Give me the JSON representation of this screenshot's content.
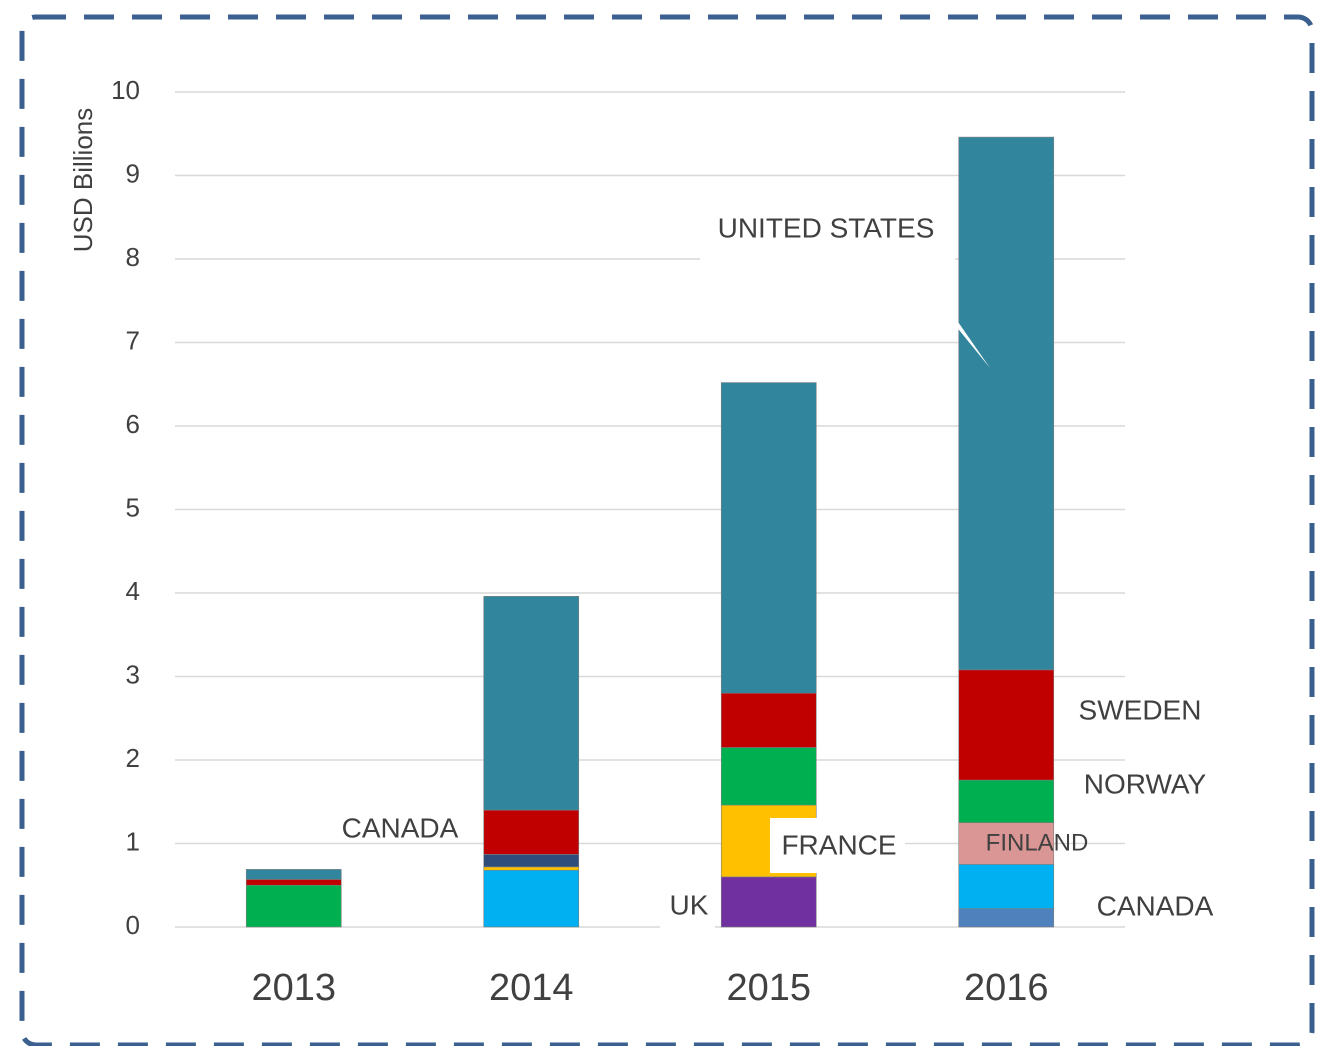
{
  "chart_data": {
    "type": "bar",
    "stacked": true,
    "y_label": "USD Billions",
    "categories": [
      "2013",
      "2014",
      "2015",
      "2016"
    ],
    "series": [
      {
        "color": "#4f81bd",
        "values": [
          null,
          null,
          null,
          0.22
        ]
      },
      {
        "color": "#00b0f0",
        "values": [
          null,
          0.68,
          null,
          0.53
        ]
      },
      {
        "color": "#7030a0",
        "values": [
          null,
          null,
          0.6,
          null
        ]
      },
      {
        "color": "#da9694",
        "values": [
          null,
          null,
          null,
          0.5
        ]
      },
      {
        "color": "#ffc000",
        "values": [
          null,
          0.04,
          0.86,
          null
        ]
      },
      {
        "color": "#2e4d7b",
        "values": [
          null,
          0.15,
          null,
          null
        ]
      },
      {
        "color": "#00b050",
        "values": [
          0.5,
          null,
          0.69,
          0.51
        ]
      },
      {
        "color": "#c00000",
        "values": [
          0.07,
          0.53,
          0.65,
          1.32
        ]
      },
      {
        "color": "#31859c",
        "values": [
          0.12,
          2.56,
          3.72,
          6.38
        ]
      }
    ],
    "annotations": [
      "UNITED STATES",
      "SWEDEN",
      "NORWAY",
      "FINLAND",
      "FRANCE",
      "UK",
      "CANADA",
      "CANADA"
    ],
    "ylim": [
      0,
      10
    ],
    "yticks": [
      0,
      1,
      2,
      3,
      4,
      5,
      6,
      7,
      8,
      9,
      10
    ],
    "grid": true
  }
}
